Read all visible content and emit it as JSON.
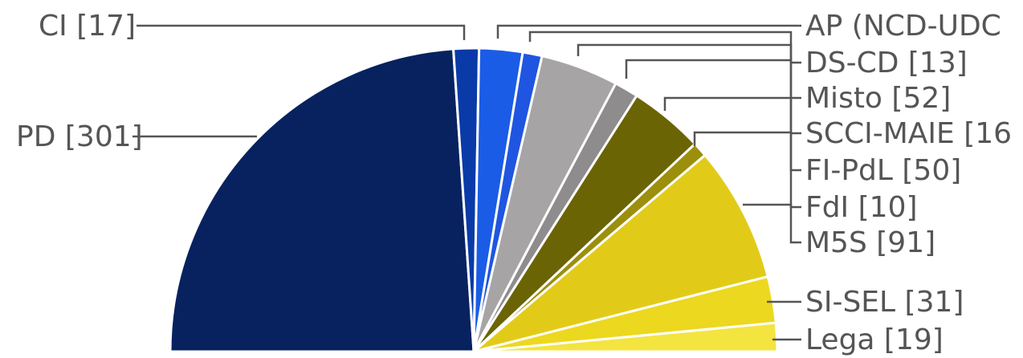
{
  "chart_data": {
    "type": "pie",
    "subtype": "semicircle-parliament",
    "slices": [
      {
        "label": "PD [301]",
        "name": "PD",
        "value": 301,
        "color": "#07225f"
      },
      {
        "label": "CI [17]",
        "name": "CI",
        "value": 17,
        "color": "#0a3aa8"
      },
      {
        "label": "AP (NCD-UDC",
        "name": "AP (NCD-UDC)",
        "value": 29,
        "color": "#1a5ce6"
      },
      {
        "label": "DS-CD [13]",
        "name": "DS-CD",
        "value": 13,
        "color": "#1f55e0"
      },
      {
        "label": "Misto [52]",
        "name": "Misto",
        "value": 52,
        "color": "#a6a4a4"
      },
      {
        "label": "SCCI-MAIE [16",
        "name": "SCCI-MAIE",
        "value": 16,
        "color": "#8e8c8c"
      },
      {
        "label": "FI-PdL [50]",
        "name": "FI-PdL",
        "value": 50,
        "color": "#6b6404"
      },
      {
        "label": "FdI [10]",
        "name": "FdI",
        "value": 10,
        "color": "#9c8f0c"
      },
      {
        "label": "M5S [91]",
        "name": "M5S",
        "value": 91,
        "color": "#e2cb18"
      },
      {
        "label": "SI-SEL [31]",
        "name": "SI-SEL",
        "value": 31,
        "color": "#ecd81e"
      },
      {
        "label": "Lega [19]",
        "name": "Lega",
        "value": 19,
        "color": "#f3e440"
      }
    ]
  }
}
